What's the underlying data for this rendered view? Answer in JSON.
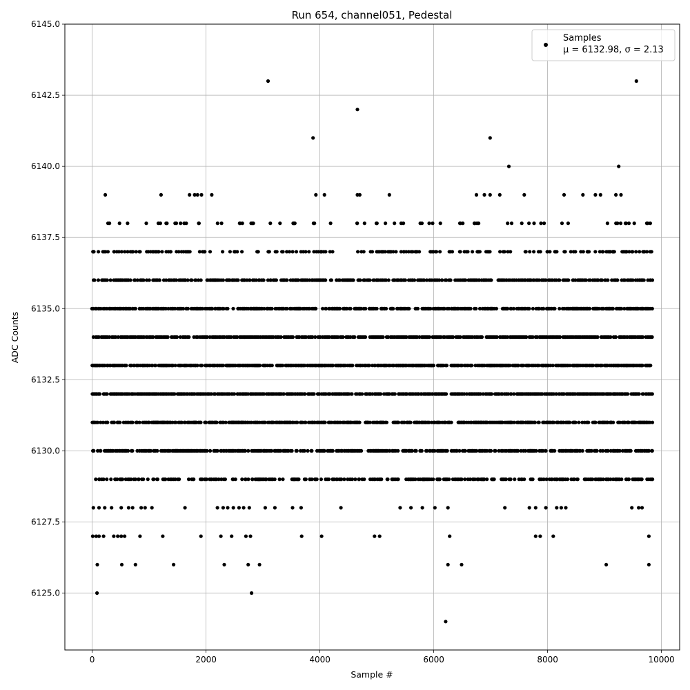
{
  "chart_data": {
    "type": "scatter",
    "title": "Run 654, channel051, Pedestal",
    "xlabel": "Sample #",
    "ylabel": "ADC Counts",
    "xlim": [
      -480,
      10320
    ],
    "ylim": [
      6123.0,
      6145.0
    ],
    "xticks": [
      0,
      2000,
      4000,
      6000,
      8000,
      10000
    ],
    "xtick_labels": [
      "0",
      "2000",
      "4000",
      "6000",
      "8000",
      "10000"
    ],
    "yticks": [
      6125.0,
      6127.5,
      6130.0,
      6132.5,
      6135.0,
      6137.5,
      6140.0,
      6142.5,
      6145.0
    ],
    "ytick_labels": [
      "6125.0",
      "6127.5",
      "6130.0",
      "6132.5",
      "6135.0",
      "6137.5",
      "6140.0",
      "6142.5",
      "6145.0"
    ],
    "grid": true,
    "legend_position": "top-right",
    "legend": {
      "series_name": "Samples",
      "stats": "μ = 6132.98, σ = 2.13"
    },
    "marker_color": "#000000",
    "series": [
      {
        "name": "Samples",
        "points": [
          [
            85,
            6125
          ],
          [
            2800,
            6125
          ],
          [
            6210,
            6124
          ],
          [
            90,
            6126
          ],
          [
            520,
            6126
          ],
          [
            760,
            6126
          ],
          [
            1430,
            6126
          ],
          [
            2320,
            6126
          ],
          [
            2740,
            6126
          ],
          [
            2940,
            6126
          ],
          [
            6250,
            6126
          ],
          [
            6490,
            6126
          ],
          [
            9030,
            6126
          ],
          [
            9780,
            6126
          ],
          [
            10,
            6127
          ],
          [
            70,
            6127
          ],
          [
            120,
            6127
          ],
          [
            200,
            6127
          ],
          [
            380,
            6127
          ],
          [
            450,
            6127
          ],
          [
            510,
            6127
          ],
          [
            570,
            6127
          ],
          [
            840,
            6127
          ],
          [
            1240,
            6127
          ],
          [
            1910,
            6127
          ],
          [
            2260,
            6127
          ],
          [
            2450,
            6127
          ],
          [
            2700,
            6127
          ],
          [
            2780,
            6127
          ],
          [
            3680,
            6127
          ],
          [
            4030,
            6127
          ],
          [
            4960,
            6127
          ],
          [
            5050,
            6127
          ],
          [
            6280,
            6127
          ],
          [
            7790,
            6127
          ],
          [
            7870,
            6127
          ],
          [
            8100,
            6127
          ],
          [
            9780,
            6127
          ],
          [
            20,
            6128
          ],
          [
            120,
            6128
          ],
          [
            220,
            6128
          ],
          [
            340,
            6128
          ],
          [
            510,
            6128
          ],
          [
            640,
            6128
          ],
          [
            710,
            6128
          ],
          [
            860,
            6128
          ],
          [
            930,
            6128
          ],
          [
            1050,
            6128
          ],
          [
            1630,
            6128
          ],
          [
            2200,
            6128
          ],
          [
            2300,
            6128
          ],
          [
            2380,
            6128
          ],
          [
            2480,
            6128
          ],
          [
            2580,
            6128
          ],
          [
            2660,
            6128
          ],
          [
            2760,
            6128
          ],
          [
            3040,
            6128
          ],
          [
            3210,
            6128
          ],
          [
            3520,
            6128
          ],
          [
            3670,
            6128
          ],
          [
            4370,
            6128
          ],
          [
            5410,
            6128
          ],
          [
            5600,
            6128
          ],
          [
            5800,
            6128
          ],
          [
            6020,
            6128
          ],
          [
            6250,
            6128
          ],
          [
            7250,
            6128
          ],
          [
            7680,
            6128
          ],
          [
            7790,
            6128
          ],
          [
            7970,
            6128
          ],
          [
            8160,
            6128
          ],
          [
            8240,
            6128
          ],
          [
            8320,
            6128
          ],
          [
            9480,
            6128
          ],
          [
            9600,
            6128
          ],
          [
            9660,
            6128
          ],
          [
            230,
            6139
          ],
          [
            1210,
            6139
          ],
          [
            1710,
            6139
          ],
          [
            1800,
            6139
          ],
          [
            1850,
            6139
          ],
          [
            1920,
            6139
          ],
          [
            2100,
            6139
          ],
          [
            3930,
            6139
          ],
          [
            4080,
            6139
          ],
          [
            4660,
            6139
          ],
          [
            4700,
            6139
          ],
          [
            5220,
            6139
          ],
          [
            6750,
            6139
          ],
          [
            6890,
            6139
          ],
          [
            6990,
            6139
          ],
          [
            7160,
            6139
          ],
          [
            7590,
            6139
          ],
          [
            8290,
            6139
          ],
          [
            8620,
            6139
          ],
          [
            8840,
            6139
          ],
          [
            8930,
            6139
          ],
          [
            9200,
            6139
          ],
          [
            9290,
            6139
          ],
          [
            3880,
            6141
          ],
          [
            6990,
            6141
          ],
          [
            7320,
            6140
          ],
          [
            9250,
            6140
          ],
          [
            4660,
            6142
          ],
          [
            3090,
            6143
          ],
          [
            9560,
            6143
          ]
        ],
        "band_levels": [
          6129,
          6130,
          6131,
          6132,
          6133,
          6134,
          6135,
          6136,
          6137,
          6138
        ],
        "band_description": "dense runs of samples at each integer level between 6129 and 6138 across samples 0–9840"
      }
    ]
  }
}
